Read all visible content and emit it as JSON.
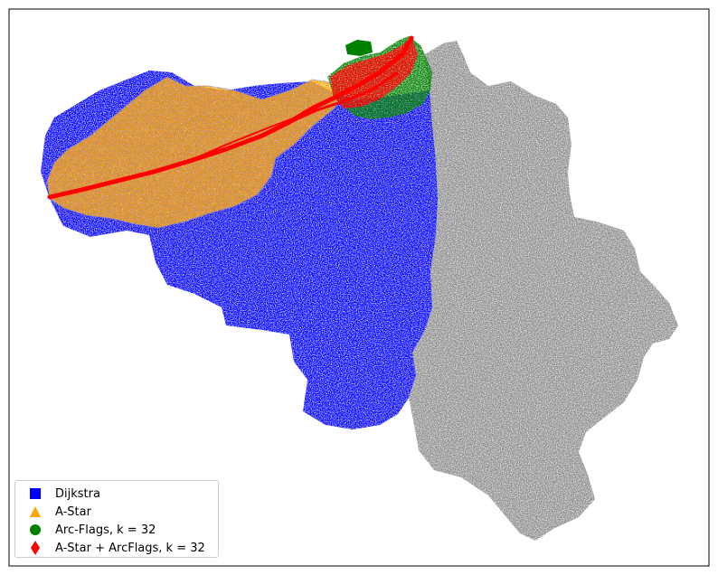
{
  "chart_data": {
    "type": "scatter",
    "title": "",
    "xlabel": "",
    "ylabel": "",
    "axes_visible": false,
    "grid": false,
    "legend_position": "lower-left",
    "series": [
      {
        "name": "Dijkstra",
        "marker": "square",
        "color": "#0000ff"
      },
      {
        "name": "A-Star",
        "marker": "triangle",
        "color": "#ffa500"
      },
      {
        "name": "Arc-Flags, k = 32",
        "marker": "circle",
        "color": "#008000"
      },
      {
        "name": "A-Star + ArcFlags, k = 32",
        "marker": "diamond",
        "color": "#ff0000"
      }
    ],
    "background_series": {
      "color": "#808080"
    }
  }
}
